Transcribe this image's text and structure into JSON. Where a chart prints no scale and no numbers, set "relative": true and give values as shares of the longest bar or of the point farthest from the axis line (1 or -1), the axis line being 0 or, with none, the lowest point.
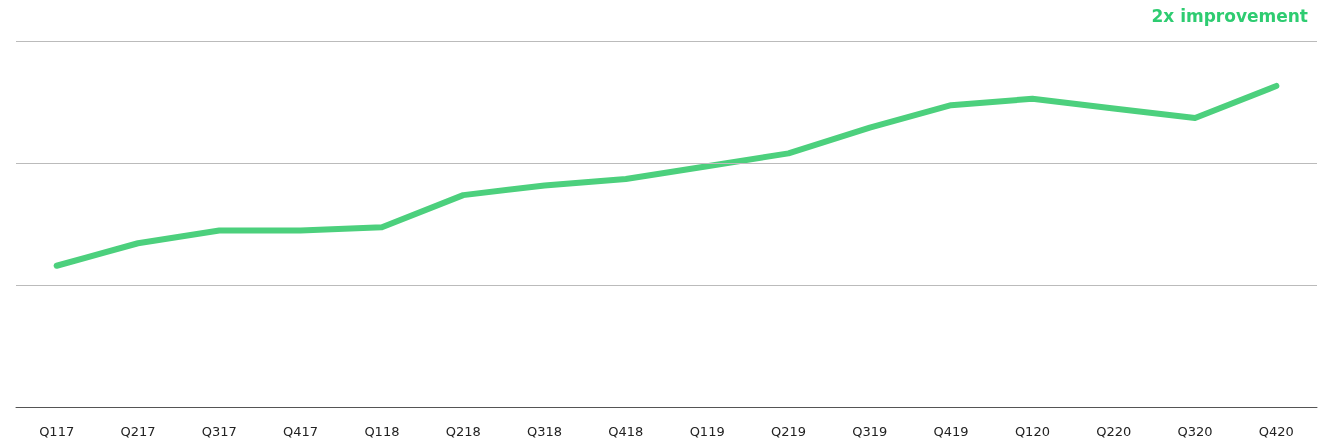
{
  "chart_data": {
    "type": "line",
    "relative": true,
    "categories": [
      "Q117",
      "Q217",
      "Q317",
      "Q417",
      "Q118",
      "Q218",
      "Q318",
      "Q418",
      "Q119",
      "Q219",
      "Q319",
      "Q419",
      "Q120",
      "Q220",
      "Q320",
      "Q420"
    ],
    "series": [
      {
        "color": "#4cd07d",
        "values": [
          0.44,
          0.51,
          0.55,
          0.55,
          0.56,
          0.66,
          0.69,
          0.71,
          0.75,
          0.79,
          0.87,
          0.94,
          0.96,
          0.93,
          0.9,
          1
        ]
      }
    ],
    "ref_lines": [
      {
        "axis": "y",
        "value": 0.38,
        "color": "#bbbbbb"
      },
      {
        "axis": "y",
        "value": 0.76,
        "color": "#bbbbbb"
      },
      {
        "axis": "y",
        "value": 1.14,
        "color": "#bbbbbb"
      }
    ],
    "annotations": [
      "2x improvement"
    ],
    "marker": "none",
    "line_style": "solid"
  }
}
